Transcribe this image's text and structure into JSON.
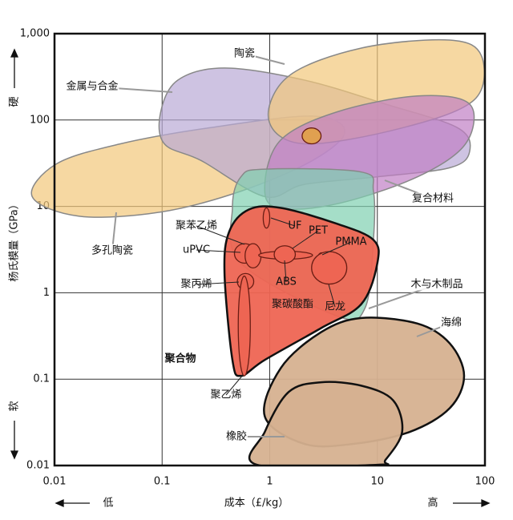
{
  "chart_data": {
    "type": "region",
    "log_x": true,
    "log_y": true,
    "grid": true,
    "xlabel": "成本（£/kg）",
    "ylabel": "杨氏模量（GPa）",
    "x_low": "低",
    "x_high": "高",
    "y_high": "硬",
    "y_low": "软",
    "xlim": [
      0.01,
      100
    ],
    "ylim": [
      0.01,
      1000
    ],
    "xticks": [
      0.01,
      0.1,
      1,
      10,
      100
    ],
    "yticks": [
      0.01,
      0.1,
      1,
      10,
      100,
      {
        "value": 1000,
        "label": "1,000"
      }
    ],
    "regions": [
      {
        "color": "#f2c77a",
        "x": [
          0.0062,
          0.0104,
          0.041,
          0.27,
          2.5,
          5.0,
          2.5,
          0.54,
          0.097,
          0.017
        ],
        "y": [
          13,
          31,
          53,
          81,
          111,
          73,
          34,
          15,
          8.6,
          7.7
        ]
      },
      {
        "color": "#b9a9d6",
        "x": [
          0.097,
          0.14,
          0.38,
          2.1,
          11.9,
          56,
          72,
          47,
          10,
          2.1,
          0.9,
          0.23,
          0.105
        ],
        "y": [
          124,
          290,
          400,
          290,
          153,
          81,
          43,
          28,
          22,
          18,
          13,
          34,
          53
        ]
      },
      {
        "color": "#f2c77a",
        "x": [
          0.98,
          1.5,
          7.1,
          47,
          93,
          79,
          17,
          2.1
        ],
        "y": [
          100,
          323,
          681,
          843,
          550,
          170,
          81,
          53
        ]
      },
      {
        "color": "#c07fc4",
        "x": [
          0.9,
          1.27,
          4.2,
          23.6,
          72,
          66,
          23.6,
          4.2,
          1.17
        ],
        "y": [
          18,
          59,
          124,
          190,
          153,
          53,
          22,
          10.7,
          9.6
        ]
      },
      {
        "color": "#7fd0b0",
        "x": [
          0.45,
          0.54,
          0.9,
          7.1,
          9.2,
          9.2,
          7.7,
          4.2,
          0.54
        ],
        "y": [
          9.6,
          22,
          27,
          25,
          15,
          4.1,
          0.67,
          0.54,
          2.2
        ]
      },
      {
        "color": "#d6b190",
        "x": [
          0.9,
          1.27,
          3.0,
          7.1,
          23.6,
          47,
          64,
          47,
          20,
          6.0,
          2.1
        ],
        "y": [
          0.037,
          0.135,
          0.35,
          0.51,
          0.44,
          0.26,
          0.109,
          0.046,
          0.0245,
          0.0178,
          0.0178
        ]
      },
      {
        "color": "#d6b190",
        "x": [
          0.76,
          0.9,
          1.5,
          3.0,
          7.1,
          14,
          17,
          11.9,
          10
        ],
        "y": [
          0.0102,
          0.0245,
          0.071,
          0.092,
          0.084,
          0.057,
          0.0245,
          0.0116,
          0.0102
        ]
      },
      {
        "color": "#ee6553",
        "x": [
          0.42,
          0.64,
          1.27,
          4.2,
          9.2,
          10,
          7.1,
          3.0,
          0.9,
          0.54,
          0.45,
          0.38
        ],
        "y": [
          5.1,
          9.2,
          9.6,
          6.3,
          4.1,
          2.2,
          0.74,
          0.39,
          0.167,
          0.109,
          0.167,
          1.7
        ]
      }
    ],
    "ellipses": [
      {
        "color": "#ee6553",
        "x": [
          0.87,
          1.0
        ],
        "y": [
          5.6,
          9.6
        ]
      },
      {
        "color": "#ee6553",
        "x": [
          0.47,
          0.73
        ],
        "y": [
          2.2,
          3.7
        ]
      },
      {
        "color": "#ee6553",
        "x": [
          0.59,
          0.83
        ],
        "y": [
          1.94,
          3.7
        ]
      },
      {
        "color": "#ee6553",
        "x": [
          0.79,
          2.5
        ],
        "y": [
          2.45,
          3.03
        ]
      },
      {
        "color": "#ee6553",
        "x": [
          1.1,
          1.73
        ],
        "y": [
          2.2,
          3.5
        ]
      },
      {
        "color": "#ee6553",
        "x": [
          2.8,
          3.3
        ],
        "y": [
          2.2,
          2.9
        ]
      },
      {
        "color": "#ee6553",
        "x": [
          2.45,
          5.2
        ],
        "y": [
          1.26,
          3.0
        ]
      },
      {
        "color": "#ee6553",
        "x": [
          0.5,
          0.71
        ],
        "y": [
          1.09,
          1.67
        ]
      },
      {
        "color": "#ee6553",
        "x": [
          0.51,
          0.66
        ],
        "y": [
          0.109,
          1.56
        ]
      },
      {
        "color": "#e0a050",
        "x": [
          2.0,
          3.0
        ],
        "y": [
          53,
          81
        ]
      }
    ],
    "labels": [
      "陶瓷",
      "金属与合金",
      "多孔陶瓷",
      "复合材料",
      "木与木制品",
      "海绵",
      "橡胶",
      "聚合物",
      "聚苯乙烯",
      "uPVC",
      "聚丙烯",
      "聚乙烯",
      "UF",
      "PET",
      "PMMA",
      "ABS",
      "聚碳酸酯",
      "尼龙"
    ]
  }
}
